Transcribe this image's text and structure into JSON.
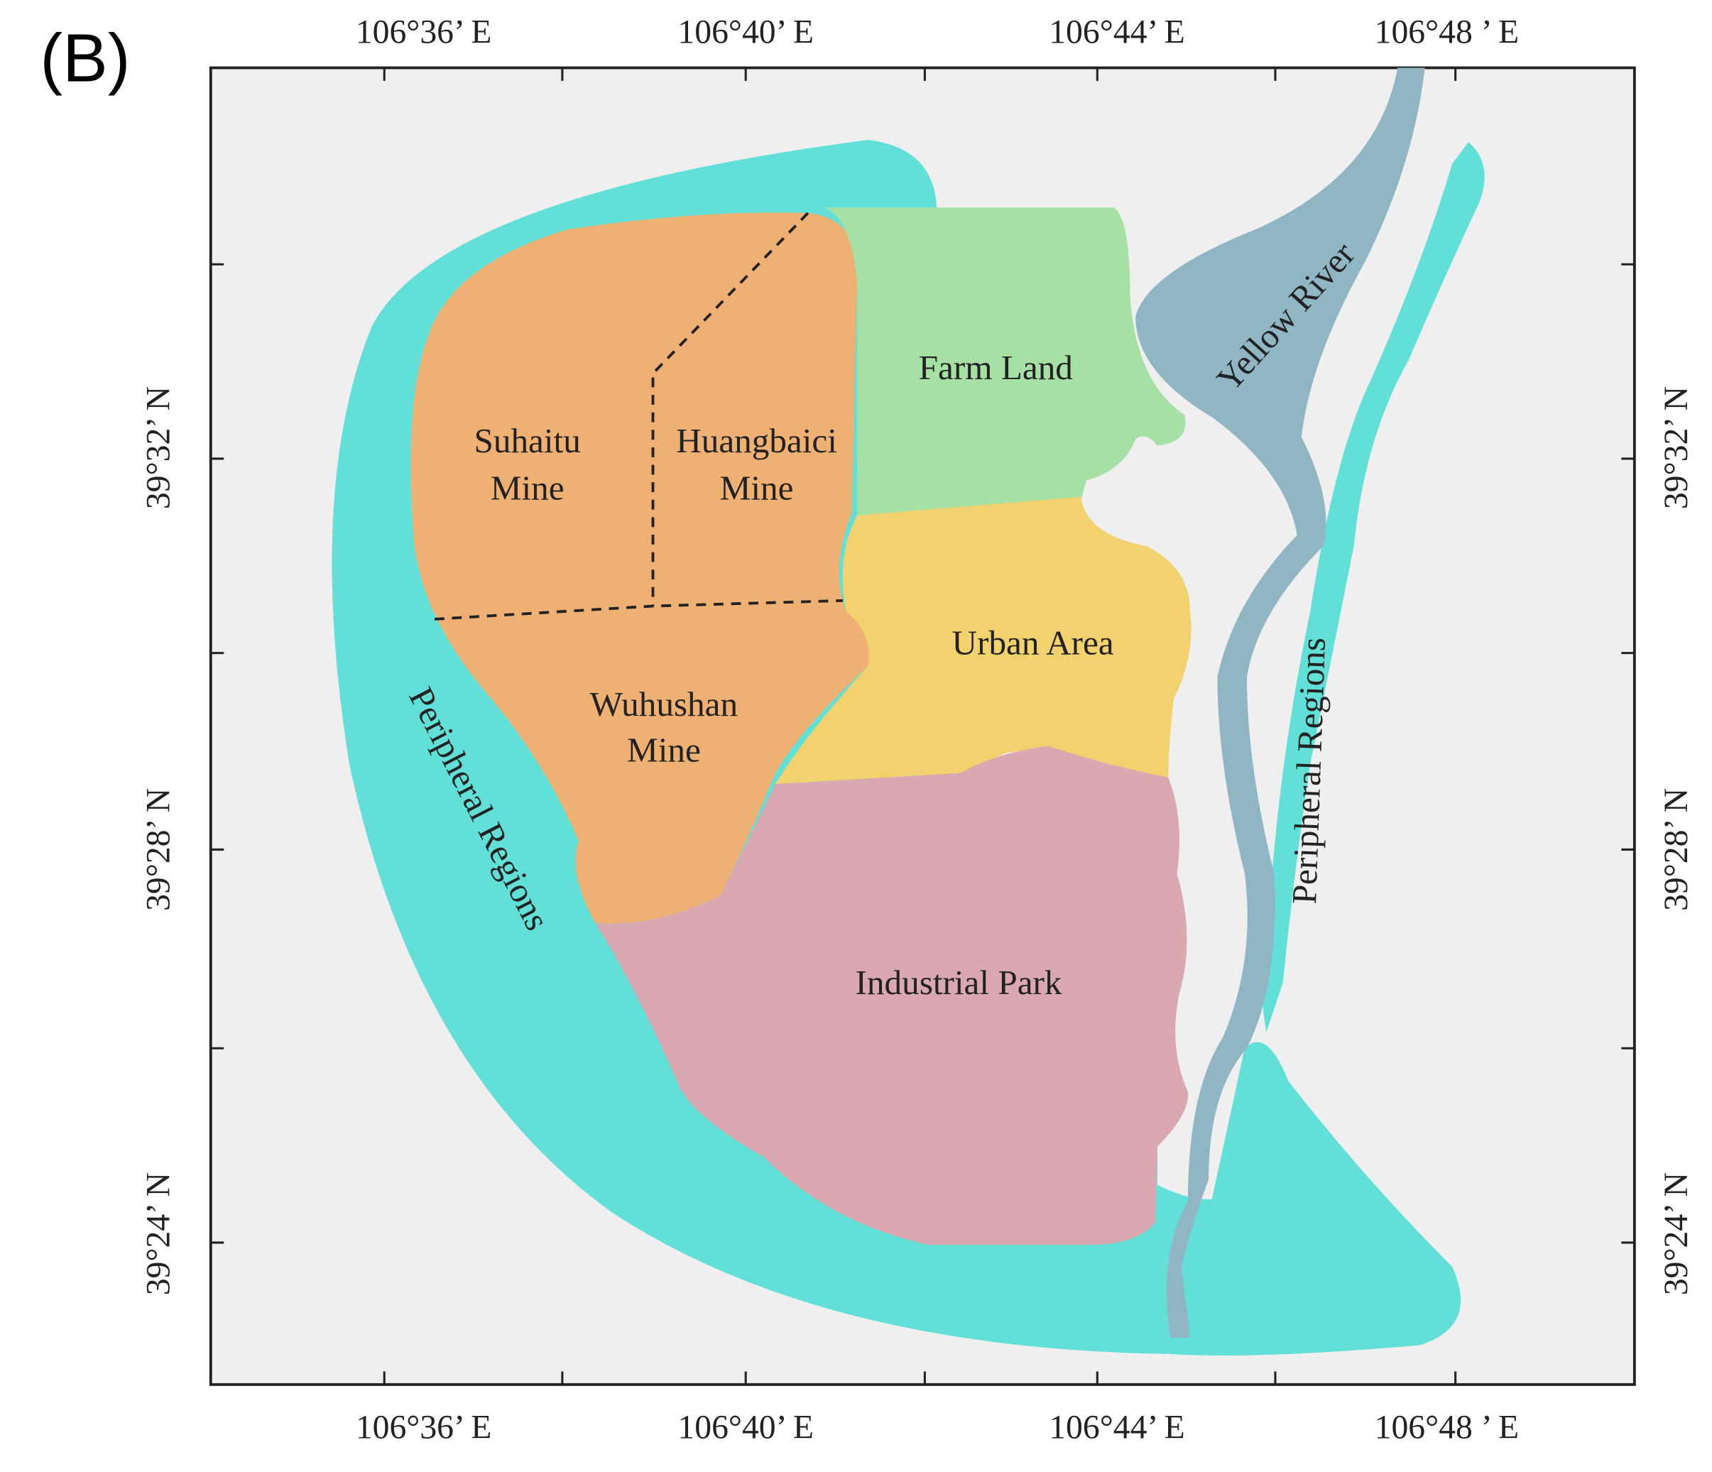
{
  "panel_label": "(B)",
  "top_labels": [
    "106°36’ E",
    "106°40’ E",
    "106°44’ E",
    "106°48 ’ E"
  ],
  "bottom_labels": [
    "106°36’ E",
    "106°40’ E",
    "106°44’ E",
    "106°48 ’ E"
  ],
  "left_labels": [
    "39°32’ N",
    "39°28’ N",
    "39°24’ N"
  ],
  "right_labels": [
    "39°32’ N",
    "39°28’ N",
    "39°24’ N"
  ],
  "regions": {
    "suhaitu": [
      "Suhaitu",
      "Mine"
    ],
    "huangbaici": [
      "Huangbaici",
      "Mine"
    ],
    "wuhushan": [
      "Wuhushan",
      "Mine"
    ],
    "farm_land": "Farm Land",
    "urban_area": "Urban Area",
    "industrial_park": "Industrial Park",
    "yellow_river": "Yellow River",
    "peripheral_left": "Peripheral Regions",
    "peripheral_right": "Peripheral Regions"
  }
}
